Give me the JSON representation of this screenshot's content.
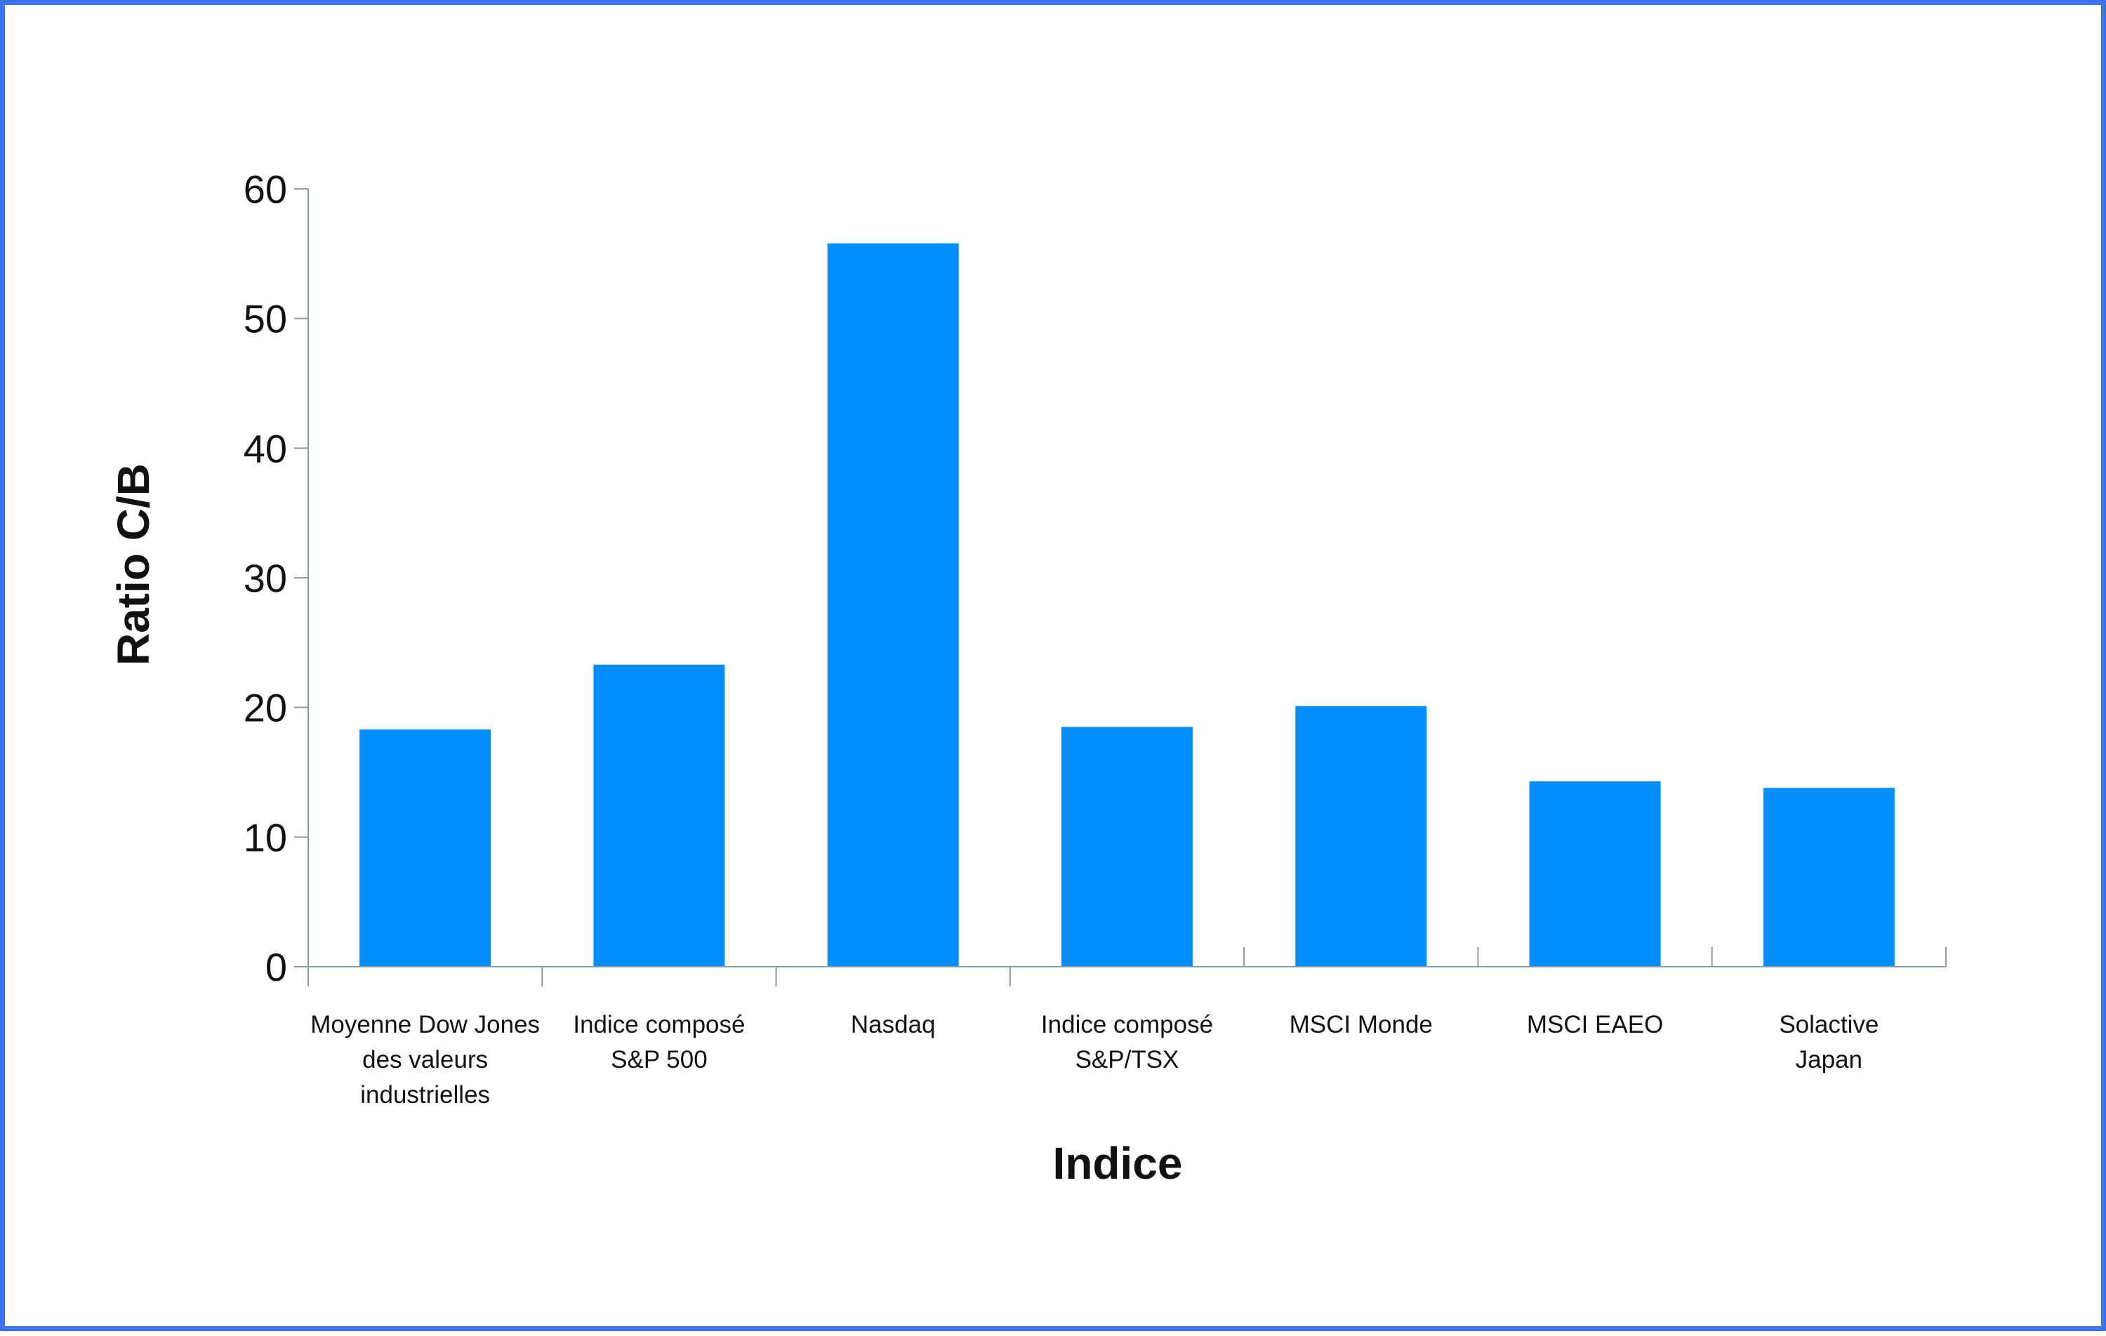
{
  "chart_data": {
    "type": "bar",
    "title": "",
    "xlabel": "Indice",
    "ylabel": "Ratio C/B",
    "ylim": [
      0,
      60
    ],
    "yticks": [
      0,
      10,
      20,
      30,
      40,
      50,
      60
    ],
    "categories": [
      [
        "Moyenne Dow Jones",
        "des valeurs",
        "industrielles"
      ],
      [
        "Indice composé",
        "S&P 500"
      ],
      [
        "Nasdaq"
      ],
      [
        "Indice composé",
        "S&P/TSX"
      ],
      [
        "MSCI Monde"
      ],
      [
        "MSCI EAEO"
      ],
      [
        "Solactive",
        "Japan"
      ]
    ],
    "values": [
      18.3,
      23.3,
      55.8,
      18.5,
      20.1,
      14.3,
      13.8
    ],
    "bar_color": "#058ffd",
    "axis_color": "#8a9ba3",
    "grid": false,
    "legend": "none"
  }
}
